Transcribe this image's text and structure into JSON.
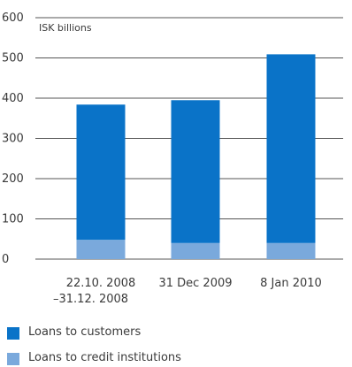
{
  "chart_data": {
    "type": "bar",
    "stacked": true,
    "unit_label": "ISK billions",
    "categories": [
      [
        "22.10. 2008",
        "–31.12. 2008"
      ],
      [
        "31 Dec 2009"
      ],
      [
        "8 Jan 2010"
      ]
    ],
    "series": [
      {
        "name": "Loans to credit institutions",
        "values": [
          48,
          40,
          40
        ],
        "color": "#7aa9dc"
      },
      {
        "name": "Loans to customers",
        "values": [
          336,
          355,
          469
        ],
        "color": "#0a73c8"
      }
    ],
    "ylim": [
      0,
      600
    ],
    "yticks": [
      "0",
      "100",
      "200",
      "300",
      "400",
      "500",
      "600"
    ],
    "grid": true
  },
  "legend": [
    {
      "label": "Loans to customers",
      "color": "#0a73c8"
    },
    {
      "label": "Loans to credit institutions",
      "color": "#7aa9dc"
    }
  ]
}
